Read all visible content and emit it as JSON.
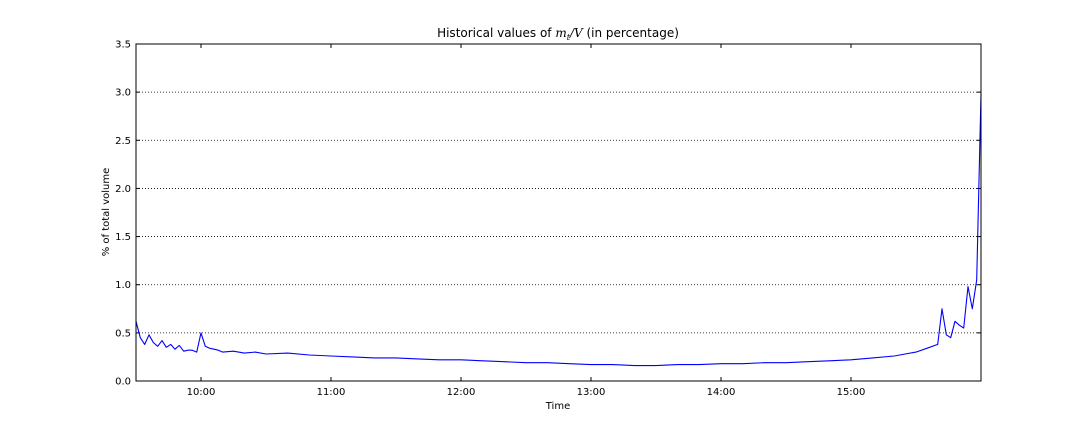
{
  "chart_data": {
    "type": "line",
    "title": {
      "prefix": "Historical values of ",
      "math_m": "m",
      "math_sub": "t",
      "math_rest": "/V",
      "suffix": " (in percentage)"
    },
    "xlabel": "Time",
    "ylabel": "% of total volume",
    "xlim": [
      "09:30",
      "16:00"
    ],
    "ylim": [
      0,
      3.5
    ],
    "grid": "y-dotted",
    "x_ticks": [
      "10:00",
      "11:00",
      "12:00",
      "13:00",
      "14:00",
      "15:00"
    ],
    "y_ticks": [
      "0.0",
      "0.5",
      "1.0",
      "1.5",
      "2.0",
      "2.5",
      "3.0",
      "3.5"
    ],
    "color": "#0000ff",
    "series": [
      {
        "x": [
          "09:30",
          "09:32",
          "09:34",
          "09:36",
          "09:38",
          "09:40",
          "09:42",
          "09:44",
          "09:46",
          "09:48",
          "09:50",
          "09:52",
          "09:54",
          "09:56",
          "09:58",
          "10:00",
          "10:02",
          "10:04",
          "10:06",
          "10:08",
          "10:10",
          "10:15",
          "10:20",
          "10:25",
          "10:30",
          "10:40",
          "10:50",
          "11:00",
          "11:10",
          "11:20",
          "11:30",
          "11:40",
          "11:50",
          "12:00",
          "12:10",
          "12:20",
          "12:30",
          "12:40",
          "12:50",
          "13:00",
          "13:10",
          "13:20",
          "13:30",
          "13:40",
          "13:50",
          "14:00",
          "14:10",
          "14:20",
          "14:30",
          "14:40",
          "14:50",
          "15:00",
          "15:10",
          "15:20",
          "15:25",
          "15:30",
          "15:35",
          "15:40",
          "15:42",
          "15:44",
          "15:46",
          "15:48",
          "15:50",
          "15:52",
          "15:54",
          "15:56",
          "15:58",
          "16:00"
        ],
        "values": [
          0.62,
          0.45,
          0.38,
          0.48,
          0.4,
          0.36,
          0.42,
          0.35,
          0.38,
          0.33,
          0.37,
          0.31,
          0.32,
          0.32,
          0.3,
          0.5,
          0.36,
          0.34,
          0.33,
          0.32,
          0.3,
          0.31,
          0.29,
          0.3,
          0.28,
          0.29,
          0.27,
          0.26,
          0.25,
          0.24,
          0.24,
          0.23,
          0.22,
          0.22,
          0.21,
          0.2,
          0.19,
          0.19,
          0.18,
          0.17,
          0.17,
          0.16,
          0.16,
          0.17,
          0.17,
          0.18,
          0.18,
          0.19,
          0.19,
          0.2,
          0.21,
          0.22,
          0.24,
          0.26,
          0.28,
          0.3,
          0.34,
          0.38,
          0.75,
          0.48,
          0.45,
          0.62,
          0.58,
          0.55,
          0.98,
          0.75,
          1.05,
          2.98
        ]
      }
    ]
  }
}
